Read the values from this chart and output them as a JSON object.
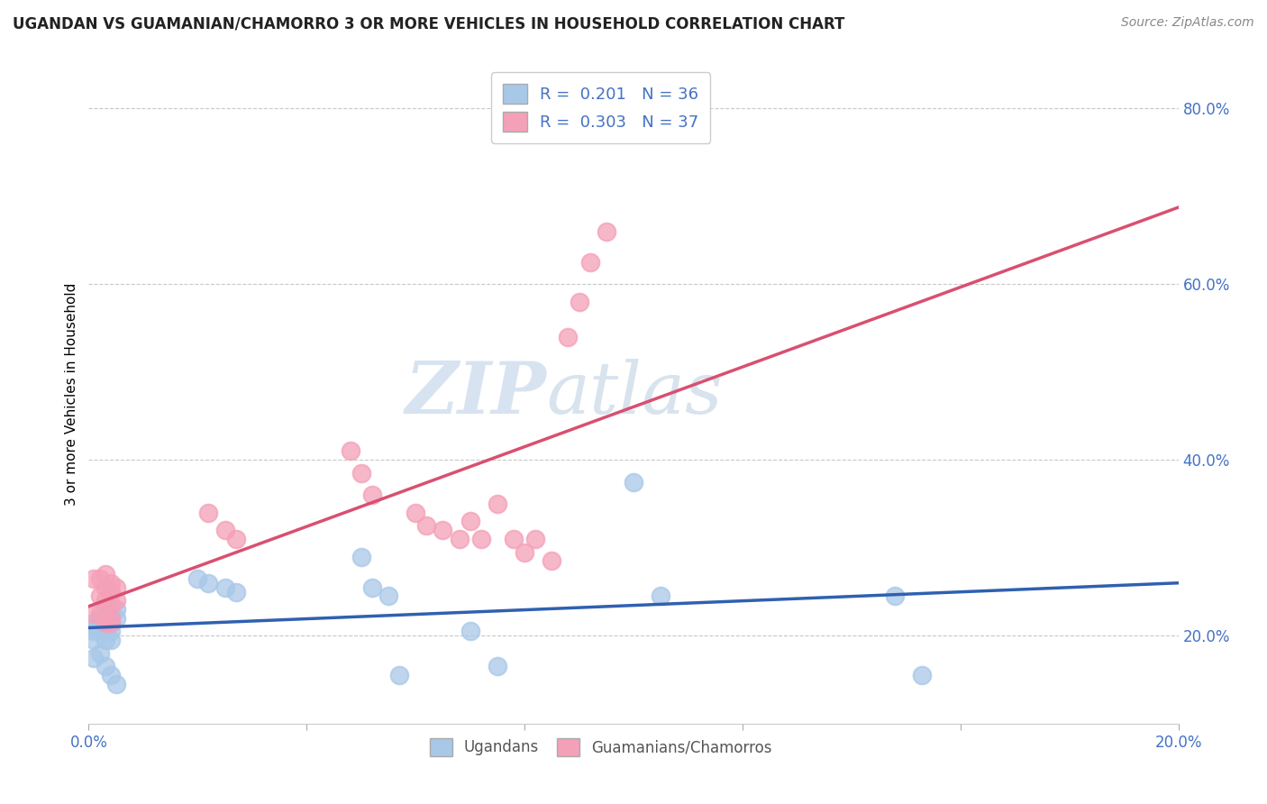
{
  "title": "UGANDAN VS GUAMANIAN/CHAMORRO 3 OR MORE VEHICLES IN HOUSEHOLD CORRELATION CHART",
  "source": "Source: ZipAtlas.com",
  "ylabel": "3 or more Vehicles in Household",
  "xlim": [
    0.0,
    0.2
  ],
  "ylim": [
    0.1,
    0.85
  ],
  "ugandan_color": "#a8c8e8",
  "guamanian_color": "#f4a0b8",
  "ugandan_line_color": "#3060b0",
  "guamanian_line_color": "#d85070",
  "background_color": "#ffffff",
  "grid_color": "#c8c8c8",
  "legend_R_ugandan": "0.201",
  "legend_N_ugandan": "36",
  "legend_R_guamanian": "0.303",
  "legend_N_guamanian": "37",
  "watermark_zip": "ZIP",
  "watermark_atlas": "atlas",
  "tick_color": "#4472c4",
  "ugandan_x": [
    0.001,
    0.001,
    0.001,
    0.001,
    0.001,
    0.002,
    0.002,
    0.002,
    0.002,
    0.003,
    0.003,
    0.003,
    0.003,
    0.003,
    0.004,
    0.004,
    0.004,
    0.004,
    0.004,
    0.005,
    0.005,
    0.005,
    0.02,
    0.022,
    0.025,
    0.027,
    0.05,
    0.052,
    0.055,
    0.057,
    0.07,
    0.075,
    0.1,
    0.105,
    0.148,
    0.153
  ],
  "ugandan_y": [
    0.215,
    0.21,
    0.205,
    0.195,
    0.175,
    0.22,
    0.215,
    0.21,
    0.18,
    0.225,
    0.215,
    0.205,
    0.195,
    0.165,
    0.225,
    0.215,
    0.205,
    0.195,
    0.155,
    0.23,
    0.22,
    0.145,
    0.265,
    0.26,
    0.255,
    0.25,
    0.29,
    0.255,
    0.245,
    0.155,
    0.205,
    0.165,
    0.375,
    0.245,
    0.245,
    0.155
  ],
  "guamanian_x": [
    0.001,
    0.001,
    0.002,
    0.002,
    0.002,
    0.003,
    0.003,
    0.003,
    0.003,
    0.004,
    0.004,
    0.004,
    0.004,
    0.004,
    0.005,
    0.005,
    0.022,
    0.025,
    0.027,
    0.048,
    0.05,
    0.052,
    0.06,
    0.062,
    0.065,
    0.068,
    0.07,
    0.072,
    0.075,
    0.078,
    0.08,
    0.082,
    0.085,
    0.088,
    0.09,
    0.092,
    0.095
  ],
  "guamanian_y": [
    0.265,
    0.225,
    0.265,
    0.245,
    0.225,
    0.27,
    0.255,
    0.24,
    0.215,
    0.26,
    0.25,
    0.235,
    0.22,
    0.215,
    0.255,
    0.24,
    0.34,
    0.32,
    0.31,
    0.41,
    0.385,
    0.36,
    0.34,
    0.325,
    0.32,
    0.31,
    0.33,
    0.31,
    0.35,
    0.31,
    0.295,
    0.31,
    0.285,
    0.54,
    0.58,
    0.625,
    0.66
  ]
}
